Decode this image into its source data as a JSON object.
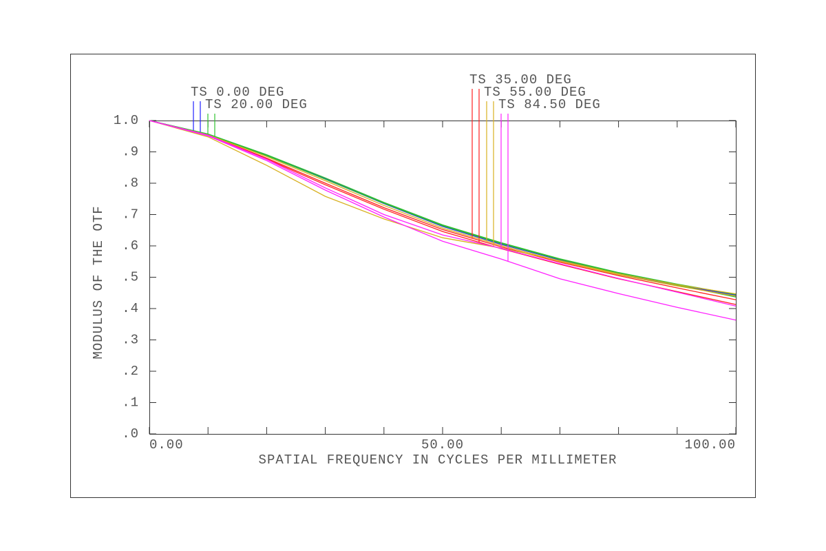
{
  "chart_data": {
    "type": "line",
    "x_label": "SPATIAL FREQUENCY IN CYCLES PER MILLIMETER",
    "y_label": "MODULUS OF THE OTF",
    "x": [
      0,
      10,
      20,
      30,
      40,
      50,
      60,
      70,
      80,
      90,
      100
    ],
    "xlim": [
      0,
      100
    ],
    "xticks": [
      {
        "value": 0,
        "label": "0.00"
      },
      {
        "value": 50,
        "label": "50.00"
      },
      {
        "value": 100,
        "label": "100.00"
      }
    ],
    "ylim": [
      0,
      1
    ],
    "yticks": [
      {
        "value": 0,
        "label": ".0"
      },
      {
        "value": 0.1,
        "label": ".1"
      },
      {
        "value": 0.2,
        "label": ".2"
      },
      {
        "value": 0.3,
        "label": ".3"
      },
      {
        "value": 0.4,
        "label": ".4"
      },
      {
        "value": 0.5,
        "label": ".5"
      },
      {
        "value": 0.6,
        "label": ".6"
      },
      {
        "value": 0.7,
        "label": ".7"
      },
      {
        "value": 0.8,
        "label": ".8"
      },
      {
        "value": 0.9,
        "label": ".9"
      },
      {
        "value": 1,
        "label": "1.0"
      }
    ],
    "series": [
      {
        "name": "TS 0.00 DEG",
        "color": "#2020ff",
        "tangential": [
          1,
          0.957,
          0.89,
          0.815,
          0.737,
          0.665,
          0.608,
          0.557,
          0.513,
          0.476,
          0.443
        ],
        "sagittal": [
          1,
          0.956,
          0.889,
          0.813,
          0.735,
          0.662,
          0.605,
          0.555,
          0.511,
          0.474,
          0.44
        ]
      },
      {
        "name": "TS 20.00 DEG",
        "color": "#30c030",
        "tangential": [
          1,
          0.957,
          0.891,
          0.817,
          0.739,
          0.667,
          0.61,
          0.559,
          0.515,
          0.478,
          0.445
        ],
        "sagittal": [
          1,
          0.955,
          0.888,
          0.813,
          0.736,
          0.664,
          0.607,
          0.557,
          0.513,
          0.475,
          0.437
        ]
      },
      {
        "name": "TS 35.00 DEG",
        "color": "#ff2020",
        "tangential": [
          1,
          0.953,
          0.88,
          0.8,
          0.722,
          0.652,
          0.597,
          0.548,
          0.505,
          0.466,
          0.428
        ],
        "sagittal": [
          1,
          0.952,
          0.877,
          0.795,
          0.717,
          0.646,
          0.591,
          0.541,
          0.495,
          0.454,
          0.413
        ]
      },
      {
        "name": "TS 55.00 DEG",
        "color": "#d8b020",
        "tangential": [
          1,
          0.954,
          0.885,
          0.808,
          0.729,
          0.657,
          0.601,
          0.551,
          0.508,
          0.472,
          0.44
        ],
        "sagittal": [
          1,
          0.948,
          0.857,
          0.758,
          0.686,
          0.626,
          0.593,
          0.553,
          0.511,
          0.476,
          0.447
        ]
      },
      {
        "name": "TS 84.50 DEG",
        "color": "#ff20ff",
        "tangential": [
          1,
          0.953,
          0.876,
          0.785,
          0.7,
          0.635,
          0.592,
          0.543,
          0.496,
          0.452,
          0.408
        ],
        "sagittal": [
          1,
          0.951,
          0.872,
          0.778,
          0.692,
          0.615,
          0.558,
          0.495,
          0.448,
          0.404,
          0.363
        ]
      }
    ]
  }
}
